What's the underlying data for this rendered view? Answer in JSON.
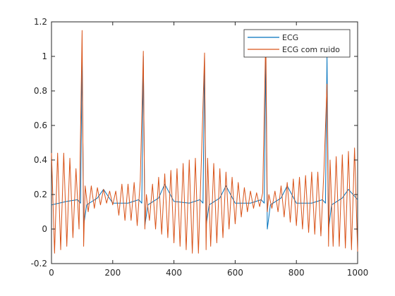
{
  "chart_data": {
    "type": "line",
    "xlim": [
      0,
      1000
    ],
    "ylim": [
      -0.2,
      1.2
    ],
    "x_ticks": [
      0,
      200,
      400,
      600,
      800,
      1000
    ],
    "y_ticks": [
      -0.2,
      0,
      0.2,
      0.4,
      0.6,
      0.8,
      1,
      1.2
    ],
    "x_tick_labels": [
      "0",
      "200",
      "400",
      "600",
      "800",
      "1000"
    ],
    "y_tick_labels": [
      "-0.2",
      "0",
      "0.2",
      "0.4",
      "0.6",
      "0.8",
      "1",
      "1.2"
    ],
    "grid": false,
    "legend_position": "top-right",
    "series": [
      {
        "name": "ECG",
        "color": "#0072BD",
        "x": [
          0,
          50,
          85,
          95,
          100,
          105,
          115,
          150,
          170,
          200,
          250,
          285,
          295,
          300,
          305,
          315,
          350,
          370,
          400,
          450,
          485,
          495,
          500,
          505,
          515,
          550,
          570,
          600,
          650,
          685,
          695,
          700,
          705,
          715,
          750,
          770,
          800,
          850,
          885,
          895,
          900,
          905,
          915,
          950,
          970,
          1000
        ],
        "y": [
          0.14,
          0.16,
          0.17,
          0.15,
          1.0,
          0.02,
          0.14,
          0.18,
          0.23,
          0.15,
          0.15,
          0.17,
          0.15,
          1.0,
          0.02,
          0.14,
          0.18,
          0.26,
          0.16,
          0.15,
          0.17,
          0.15,
          1.0,
          0.02,
          0.14,
          0.18,
          0.25,
          0.15,
          0.15,
          0.17,
          0.15,
          1.0,
          0.0,
          0.14,
          0.18,
          0.25,
          0.15,
          0.15,
          0.17,
          0.15,
          1.0,
          0.0,
          0.14,
          0.18,
          0.23,
          0.17
        ]
      },
      {
        "name": "ECG com ruido",
        "color": "#D95319",
        "x": [
          0,
          10,
          20,
          30,
          40,
          50,
          60,
          70,
          80,
          90,
          100,
          105,
          110,
          120,
          130,
          140,
          150,
          160,
          170,
          180,
          190,
          200,
          210,
          220,
          230,
          240,
          250,
          260,
          270,
          280,
          290,
          300,
          305,
          310,
          320,
          330,
          340,
          350,
          360,
          370,
          380,
          390,
          400,
          410,
          420,
          430,
          440,
          450,
          460,
          470,
          480,
          490,
          500,
          505,
          510,
          520,
          530,
          540,
          550,
          560,
          570,
          580,
          590,
          600,
          610,
          620,
          630,
          640,
          650,
          660,
          670,
          680,
          690,
          700,
          705,
          710,
          720,
          730,
          740,
          750,
          760,
          770,
          780,
          790,
          800,
          810,
          820,
          830,
          840,
          850,
          860,
          870,
          880,
          890,
          900,
          905,
          910,
          920,
          930,
          940,
          950,
          960,
          970,
          980,
          990,
          1000
        ],
        "y": [
          0.44,
          -0.14,
          0.44,
          -0.12,
          0.44,
          -0.1,
          0.41,
          -0.05,
          0.35,
          0.0,
          1.15,
          -0.1,
          0.25,
          0.1,
          0.25,
          0.12,
          0.24,
          0.14,
          0.23,
          0.15,
          0.22,
          0.14,
          0.22,
          0.08,
          0.26,
          0.05,
          0.26,
          0.05,
          0.27,
          0.02,
          0.28,
          1.03,
          0.0,
          0.2,
          0.05,
          0.26,
          0.0,
          0.3,
          -0.03,
          0.32,
          -0.05,
          0.34,
          -0.08,
          0.35,
          -0.1,
          0.38,
          -0.12,
          0.4,
          -0.14,
          0.41,
          -0.14,
          0.42,
          1.02,
          -0.12,
          0.41,
          -0.1,
          0.38,
          -0.08,
          0.35,
          -0.05,
          0.33,
          0.0,
          0.3,
          0.03,
          0.27,
          0.07,
          0.24,
          0.1,
          0.22,
          0.12,
          0.21,
          0.13,
          0.21,
          1.13,
          0.1,
          0.2,
          0.12,
          0.22,
          0.1,
          0.25,
          0.07,
          0.27,
          0.04,
          0.29,
          0.02,
          0.3,
          0.0,
          0.31,
          -0.02,
          0.33,
          -0.03,
          0.33,
          -0.04,
          0.34,
          0.84,
          -0.1,
          0.4,
          -0.1,
          0.42,
          -0.1,
          0.43,
          -0.11,
          0.45,
          -0.12,
          0.47,
          -0.13
        ]
      }
    ]
  }
}
